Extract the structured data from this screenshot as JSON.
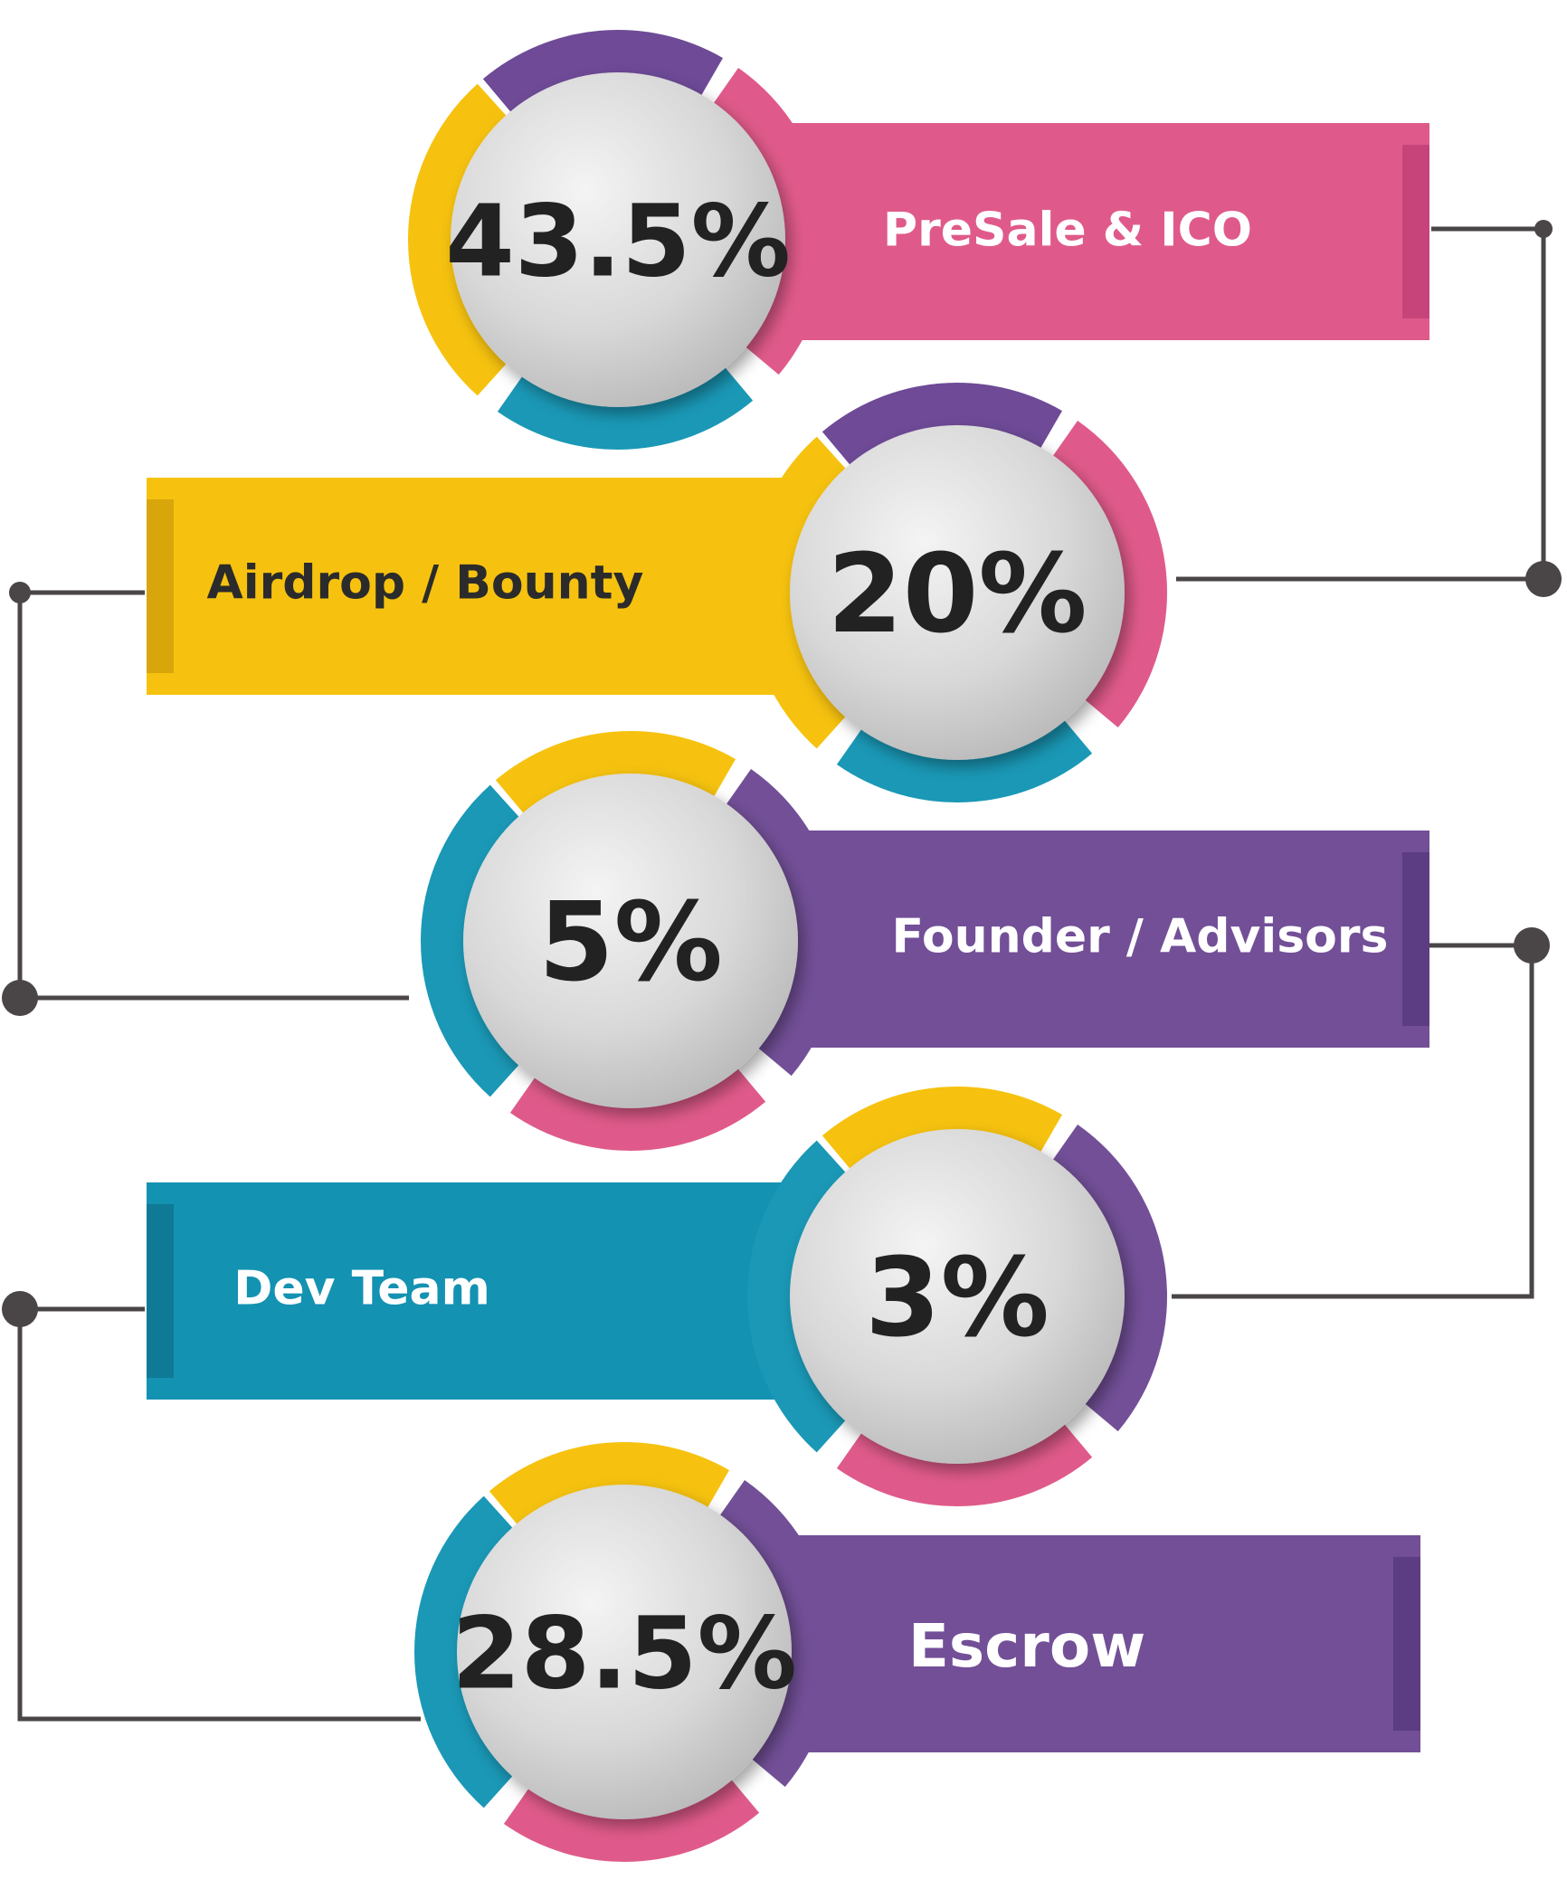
{
  "rows": [
    {
      "value": "43.5%",
      "label": "PreSale & ICO",
      "bar_color": "#df5a8a",
      "bar_shade": "#c7447a",
      "label_color": "#ffffff",
      "ring_colors": [
        "#6e4a97",
        "#df5a8a",
        "#1a98b6",
        "#f6c20f"
      ]
    },
    {
      "value": "20%",
      "label": "Airdrop / Bounty",
      "bar_color": "#f6c20f",
      "bar_shade": "#d8a60a",
      "label_color": "#2b2b2b",
      "ring_colors": [
        "#6e4a97",
        "#df5a8a",
        "#1a98b6",
        "#f6c20f"
      ]
    },
    {
      "value": "5%",
      "label": "Founder / Advisors",
      "bar_color": "#724f97",
      "bar_shade": "#5c3c82",
      "label_color": "#ffffff",
      "ring_colors": [
        "#f6c20f",
        "#724f97",
        "#df5a8a",
        "#1a98b6"
      ]
    },
    {
      "value": "3%",
      "label": "Dev Team",
      "bar_color": "#1492b2",
      "bar_shade": "#0e7a95",
      "label_color": "#ffffff",
      "ring_colors": [
        "#f6c20f",
        "#724f97",
        "#df5a8a",
        "#1a98b6"
      ]
    },
    {
      "value": "28.5%",
      "label": "Escrow",
      "bar_color": "#724f97",
      "bar_shade": "#5c3c82",
      "label_color": "#ffffff",
      "ring_colors": [
        "#f6c20f",
        "#724f97",
        "#df5a8a",
        "#1a98b6"
      ]
    }
  ],
  "connector_color": "#4a4546"
}
